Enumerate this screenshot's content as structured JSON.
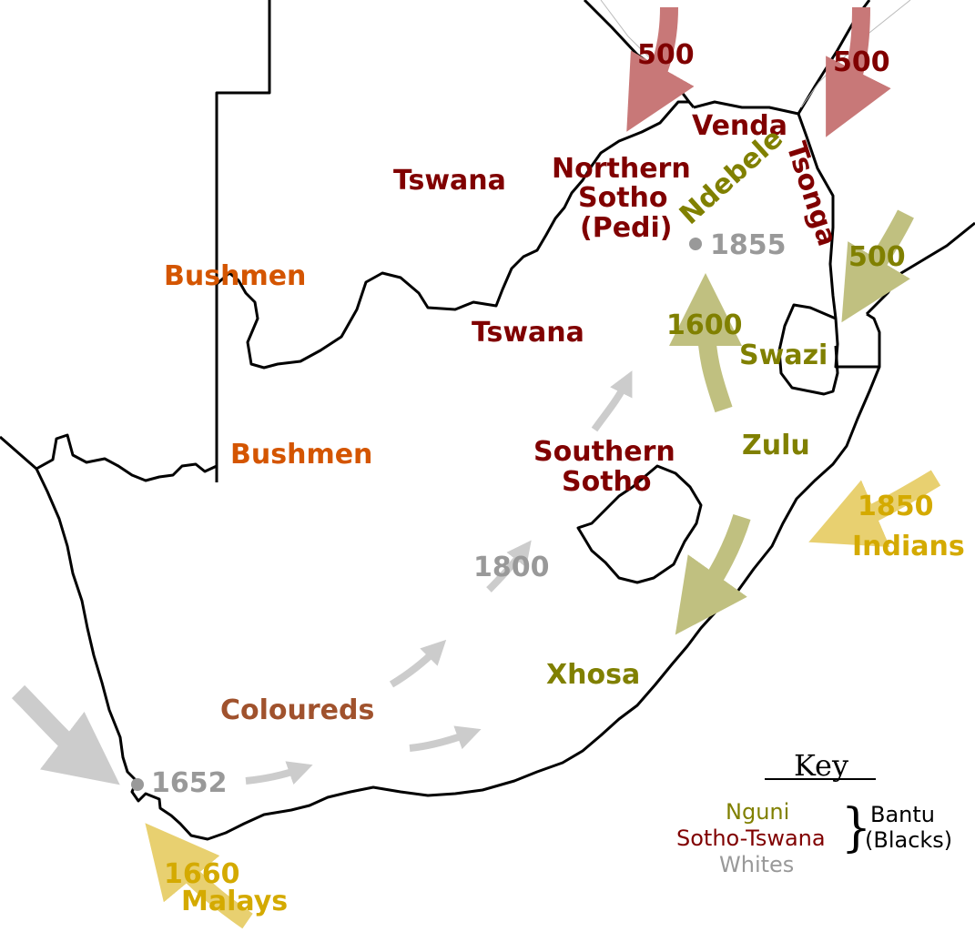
{
  "colors": {
    "sotho_tswana": "#800000",
    "nguni": "#808000",
    "whites": "#999999",
    "bushmen": "#d45500",
    "coloureds": "#a0522d",
    "asians": "#d4aa00",
    "arrow_sotho": "#c87878",
    "arrow_nguni": "#c0c080",
    "arrow_white": "#cccccc",
    "arrow_asian": "#e8d070"
  },
  "labels": {
    "venda": "Venda",
    "northern_sotho": [
      "Northern",
      "Sotho",
      "(Pedi)"
    ],
    "ndebele": "Ndebele",
    "tsonga": "Tsonga",
    "tswana_north": "Tswana",
    "tswana_south": "Tswana",
    "bushmen_north": "Bushmen",
    "bushmen_south": "Bushmen",
    "swazi": "Swazi",
    "zulu": "Zulu",
    "southern_sotho": [
      "Southern",
      "Sotho"
    ],
    "xhosa": "Xhosa",
    "coloureds": "Coloureds",
    "indians": "Indians",
    "malays": "Malays"
  },
  "dates": {
    "sotho_north_west": "500",
    "sotho_north_east": "500",
    "nguni_east": "500",
    "nguni_north": "1600",
    "ndebele_settlement": "1855",
    "whites_1800": "1800",
    "cape_settlement": "1652",
    "indians_arrival": "1850",
    "malays_arrival": "1660"
  },
  "key": {
    "title": "Key",
    "items": [
      "Nguni",
      "Sotho-Tswana",
      "Whites"
    ],
    "group_label": [
      "Bantu",
      "(Blacks)"
    ],
    "brace": "}"
  }
}
